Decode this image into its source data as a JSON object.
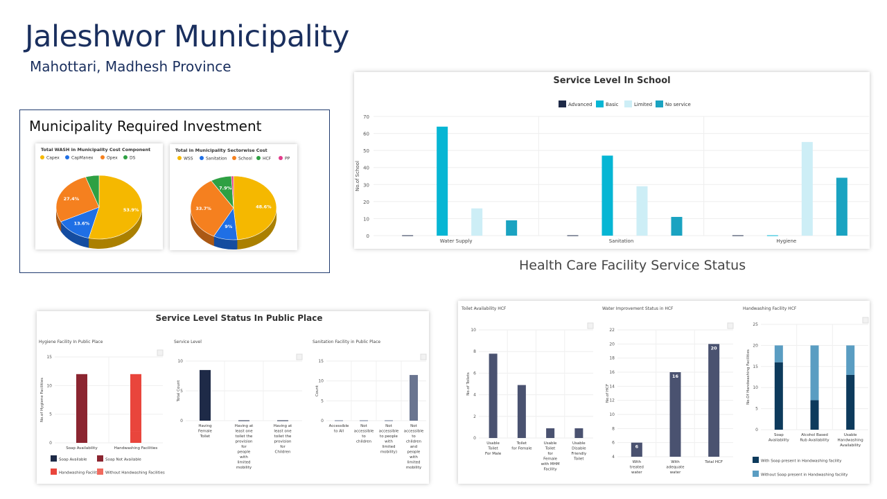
{
  "header": {
    "title": "Jaleshwor Municipality",
    "subtitle": "Mahottari, Madhesh Province"
  },
  "investment": {
    "title": "Municipality Required Investment"
  },
  "health_section_title": "Health Care Facility Service Status",
  "colors": {
    "advanced": "#1e2a47",
    "basic": "#06b6d4",
    "limited": "#cdeef6",
    "no_service": "#1aa3c1",
    "dark_red": "#8b2530",
    "red": "#e9453c",
    "slate": "#4a5270",
    "navy": "#0d3a5c",
    "blue_light": "#5a9dc2",
    "pie_yellow": "#f5b800",
    "pie_blue": "#1f6fe5",
    "pie_orange": "#f5801f",
    "pie_green": "#2ea043",
    "pie_pink": "#e23a8a"
  },
  "chart_data": [
    {
      "type": "pie",
      "title": "Total WASH in Municipality Cost Component",
      "labels": [
        "Capex",
        "CapManex",
        "Opex",
        "DS"
      ],
      "values": [
        53.9,
        13.6,
        27.4,
        5.1
      ],
      "data_labels": [
        "53.9%",
        "13.6%",
        "27.4%",
        ""
      ]
    },
    {
      "type": "pie",
      "title": "Total in Municipality Sectorwise Cost",
      "labels": [
        "WSS",
        "Sanitation",
        "School",
        "HCF",
        "PP"
      ],
      "values": [
        48.6,
        9,
        33.7,
        7.9,
        0.8
      ],
      "data_labels": [
        "48.6%",
        "9%",
        "33.7%",
        "7.9%",
        ""
      ]
    },
    {
      "type": "bar",
      "title": "Service Level In School",
      "categories": [
        "Water Supply",
        "Sanitation",
        "Hygiene"
      ],
      "series": [
        {
          "name": "Advanced",
          "values": [
            0,
            0,
            0
          ]
        },
        {
          "name": "Basic",
          "values": [
            64,
            47,
            0
          ]
        },
        {
          "name": "Limited",
          "values": [
            16,
            29,
            55
          ]
        },
        {
          "name": "No service",
          "values": [
            9,
            11,
            34
          ]
        }
      ],
      "ylabel": "No.of School",
      "ylim": [
        0,
        70
      ],
      "yticks": [
        "0",
        "10",
        "20",
        "30",
        "40",
        "50",
        "60",
        "70"
      ],
      "legend": "top"
    },
    {
      "type": "bar",
      "title": "Service Level Status In Public Place",
      "subcharts": [
        {
          "title": "Hygiene Facility In Public Place",
          "ylabel": "No.of Hygiene Facilities",
          "categories": [
            "Soap Availability",
            "Handwashing Facilities"
          ],
          "series": [
            {
              "name": "Soap Available",
              "values": [
                0,
                0
              ]
            },
            {
              "name": "Soap Not Available",
              "values": [
                12,
                0
              ]
            },
            {
              "name": "Handwashing Facilities",
              "values": [
                0,
                2
              ]
            },
            {
              "name": "Without Handwashing Facilities",
              "values": [
                0,
                10
              ]
            }
          ],
          "ylim": [
            0,
            15
          ],
          "yticks": [
            "0",
            "5",
            "10",
            "15"
          ]
        },
        {
          "title": "Service Level",
          "ylabel": "Total Count",
          "categories": [
            "Having Female Toilet",
            "Having at least one toilet the provision for people with limited mobility",
            "Having at least one toilet the provision for Children"
          ],
          "category_lines": [
            [
              "Having",
              "Female",
              "Toilet"
            ],
            [
              "Having at",
              "least one",
              "toilet the",
              "provision",
              "for",
              "people",
              "with",
              "limited",
              "mobility"
            ],
            [
              "Having at",
              "least one",
              "toilet the",
              "provision",
              "for",
              "Children"
            ]
          ],
          "values": [
            8.5,
            0,
            0
          ],
          "ylim": [
            0,
            10
          ],
          "yticks": [
            "0",
            "5",
            "10"
          ]
        },
        {
          "title": "Sanitation Facility in Public Place",
          "ylabel": "Count",
          "categories": [
            "Accessible to All",
            "Not accessible to children",
            "Not accessible to people with limited mobility)",
            "Not accessible to children and people with limited mobility"
          ],
          "category_lines": [
            [
              "Accessible",
              "to All"
            ],
            [
              "Not",
              "accessible",
              "to",
              "children"
            ],
            [
              "Not",
              "accessible",
              "to people",
              "with",
              "limited",
              "mobility)"
            ],
            [
              "Not",
              "accessible",
              "to",
              "children",
              "and",
              "people",
              "with",
              "limited",
              "mobility"
            ]
          ],
          "values": [
            0,
            0,
            0,
            11.5
          ],
          "ylim": [
            0,
            15
          ],
          "yticks": [
            "0",
            "5",
            "10",
            "15"
          ]
        }
      ]
    },
    {
      "type": "bar",
      "title": "Health Care Facility Service Status",
      "subcharts": [
        {
          "title": "Toilet Availability HCF",
          "ylabel": "No.of Toilets",
          "categories": [
            "Usable Toilet For Male",
            "Toilet for Female",
            "Usable Toilet for Female with MHM Facility",
            "Usable Disable Friendly Toilet"
          ],
          "category_lines": [
            [
              "Usable",
              "Toilet",
              "For Male"
            ],
            [
              "Toilet",
              "for Female"
            ],
            [
              "Usable",
              "Toilet",
              "for",
              "Female",
              "with MHM",
              "Facility"
            ],
            [
              "Usable",
              "Disable",
              "Friendly",
              "Toilet"
            ]
          ],
          "values": [
            7.8,
            4.9,
            0.9,
            0.9
          ],
          "ylim": [
            0,
            10
          ],
          "yticks": [
            "0",
            "2",
            "4",
            "6",
            "8",
            "10"
          ]
        },
        {
          "title": "Water Improvement Status in HCF",
          "ylabel": "No.of HCF",
          "categories": [
            "With treated water",
            "With adequate water",
            "Total HCF"
          ],
          "category_lines": [
            [
              "With",
              "treated",
              "water"
            ],
            [
              "With",
              "adequate",
              "water"
            ],
            [
              "Total HCF"
            ]
          ],
          "values": [
            6,
            16,
            20
          ],
          "data_labels": [
            "6",
            "16",
            "20"
          ],
          "ylim": [
            4,
            22
          ],
          "yticks": [
            "4",
            "6",
            "8",
            "10",
            "12",
            "14",
            "16",
            "18",
            "20",
            "22"
          ]
        },
        {
          "title": "Handwashing Facility HCF",
          "ylabel": "No.Of Handwashing Facilities",
          "categories": [
            "Soap Availability",
            "Alcohol Based Rub Availability",
            "Usable Handwashing Availability"
          ],
          "category_lines": [
            [
              "Soap",
              "Availability"
            ],
            [
              "Alcohol Based",
              "Rub Availability"
            ],
            [
              "Usable",
              "Handwashing",
              "Availability"
            ]
          ],
          "series": [
            {
              "name": "With Soap present in Handwashing facility",
              "values": [
                16,
                7,
                13
              ]
            },
            {
              "name": "Without Soap present in Handwashing facility",
              "values": [
                4,
                13,
                7
              ]
            }
          ],
          "ylim": [
            0,
            25
          ],
          "yticks": [
            "0",
            "5",
            "10",
            "15",
            "20",
            "25"
          ]
        }
      ]
    }
  ]
}
